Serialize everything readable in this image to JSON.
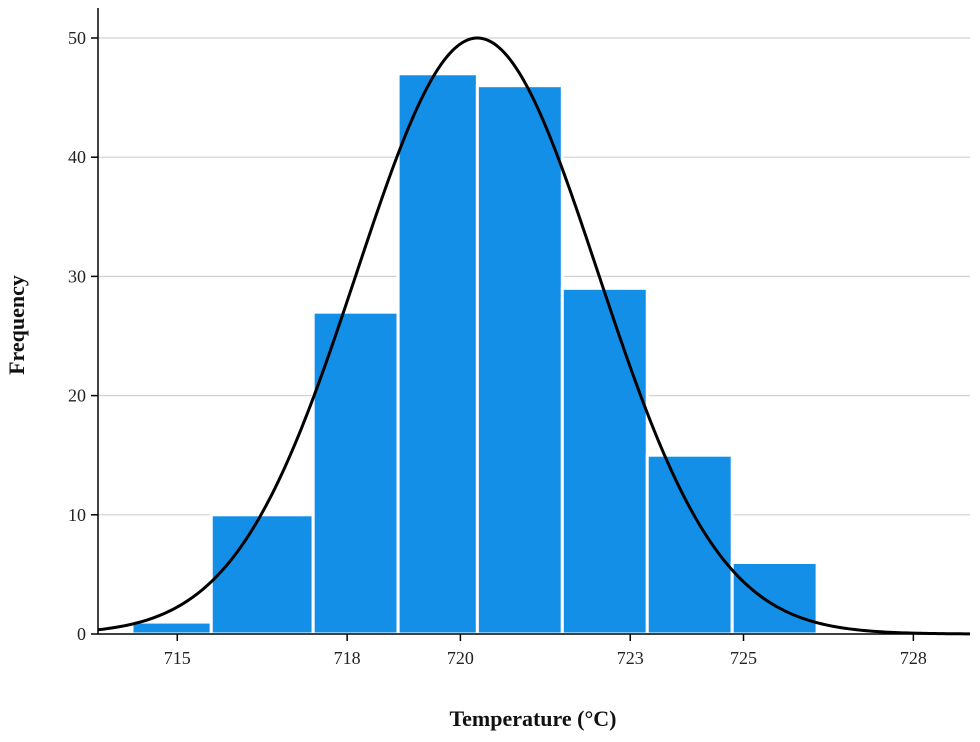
{
  "chart_data": {
    "type": "bar",
    "variant": "histogram-with-normal-curve",
    "title": "",
    "xlabel": "Temperature (°C)",
    "ylabel": "Frequency",
    "bins": [
      {
        "start": 714.2,
        "end": 715.6,
        "value": 1
      },
      {
        "start": 715.6,
        "end": 717.4,
        "value": 10
      },
      {
        "start": 717.4,
        "end": 718.9,
        "value": 27
      },
      {
        "start": 718.9,
        "end": 720.3,
        "value": 47
      },
      {
        "start": 720.3,
        "end": 721.8,
        "value": 46
      },
      {
        "start": 721.8,
        "end": 723.3,
        "value": 29
      },
      {
        "start": 723.3,
        "end": 724.8,
        "value": 15
      },
      {
        "start": 724.8,
        "end": 726.3,
        "value": 6
      }
    ],
    "x_ticks": [
      715,
      718,
      720,
      723,
      725,
      728
    ],
    "y_ticks": [
      0,
      10,
      20,
      30,
      40,
      50
    ],
    "xlim": [
      713.6,
      729.0
    ],
    "ylim": [
      0,
      53
    ],
    "grid": "horizontal",
    "normal_curve": {
      "mean": 720.3,
      "sd": 2.13,
      "peak": 50.0
    },
    "colors": {
      "bar": "#138fe8",
      "bar_edge": "#ffffff",
      "curve": "#000000",
      "grid": "#d2d2d2",
      "axis": "#000000"
    }
  }
}
